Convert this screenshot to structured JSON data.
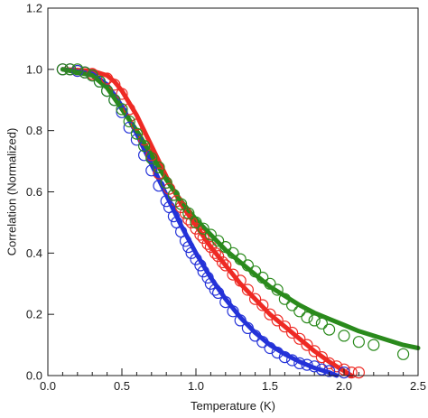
{
  "chart_data": {
    "type": "scatter",
    "title": "",
    "xlabel": "Temperature (K)",
    "ylabel": "Correlation (Normalized)",
    "xlim": [
      0.0,
      2.5
    ],
    "ylim": [
      0.0,
      1.2
    ],
    "x_ticks": [
      0.0,
      0.5,
      1.0,
      1.5,
      2.0,
      2.5
    ],
    "x_tick_labels": [
      "0.0",
      "0.5",
      "1.0",
      "1.5",
      "2.0",
      "2.5"
    ],
    "x_minor_step": 0.1,
    "y_ticks": [
      0.0,
      0.2,
      0.4,
      0.6,
      0.8,
      1.0,
      1.2
    ],
    "y_tick_labels": [
      "0.0",
      "0.2",
      "0.4",
      "0.6",
      "0.8",
      "1.0",
      "1.2"
    ],
    "grid": false,
    "legend": "none",
    "series": [
      {
        "color": "#ee2a24",
        "marker": "open-circle",
        "points": [
          [
            0.1,
            1.0
          ],
          [
            0.15,
            1.0
          ],
          [
            0.2,
            0.995
          ],
          [
            0.25,
            0.99
          ],
          [
            0.3,
            0.985
          ],
          [
            0.4,
            0.97
          ],
          [
            0.45,
            0.95
          ],
          [
            0.5,
            0.92
          ],
          [
            0.55,
            0.87
          ],
          [
            0.6,
            0.82
          ],
          [
            0.65,
            0.77
          ],
          [
            0.7,
            0.72
          ],
          [
            0.75,
            0.66
          ],
          [
            0.8,
            0.63
          ],
          [
            0.82,
            0.61
          ],
          [
            0.85,
            0.59
          ],
          [
            0.87,
            0.57
          ],
          [
            0.9,
            0.55
          ],
          [
            0.93,
            0.53
          ],
          [
            0.95,
            0.51
          ],
          [
            0.97,
            0.5
          ],
          [
            1.0,
            0.48
          ],
          [
            1.03,
            0.46
          ],
          [
            1.05,
            0.45
          ],
          [
            1.08,
            0.43
          ],
          [
            1.1,
            0.42
          ],
          [
            1.13,
            0.4
          ],
          [
            1.15,
            0.39
          ],
          [
            1.18,
            0.37
          ],
          [
            1.2,
            0.36
          ],
          [
            1.25,
            0.33
          ],
          [
            1.3,
            0.31
          ],
          [
            1.35,
            0.28
          ],
          [
            1.4,
            0.25
          ],
          [
            1.45,
            0.23
          ],
          [
            1.5,
            0.2
          ],
          [
            1.55,
            0.18
          ],
          [
            1.6,
            0.16
          ],
          [
            1.65,
            0.14
          ],
          [
            1.7,
            0.12
          ],
          [
            1.75,
            0.1
          ],
          [
            1.8,
            0.08
          ],
          [
            1.85,
            0.06
          ],
          [
            1.9,
            0.04
          ],
          [
            1.95,
            0.03
          ],
          [
            2.0,
            0.02
          ],
          [
            2.05,
            0.01
          ],
          [
            2.1,
            0.01
          ]
        ],
        "fit_line": [
          [
            0.1,
            1.0
          ],
          [
            0.3,
            0.995
          ],
          [
            0.4,
            0.98
          ],
          [
            0.45,
            0.96
          ],
          [
            0.5,
            0.93
          ],
          [
            0.6,
            0.85
          ],
          [
            0.7,
            0.75
          ],
          [
            0.8,
            0.65
          ],
          [
            0.9,
            0.56
          ],
          [
            1.0,
            0.49
          ],
          [
            1.1,
            0.42
          ],
          [
            1.2,
            0.36
          ],
          [
            1.3,
            0.3
          ],
          [
            1.4,
            0.25
          ],
          [
            1.5,
            0.2
          ],
          [
            1.6,
            0.16
          ],
          [
            1.7,
            0.12
          ],
          [
            1.8,
            0.08
          ],
          [
            1.9,
            0.045
          ],
          [
            2.0,
            0.015
          ],
          [
            2.05,
            0.0
          ]
        ]
      },
      {
        "color": "#2432d8",
        "marker": "open-circle",
        "points": [
          [
            0.1,
            1.0
          ],
          [
            0.15,
            1.0
          ],
          [
            0.2,
            0.995
          ],
          [
            0.25,
            0.99
          ],
          [
            0.3,
            0.98
          ],
          [
            0.35,
            0.96
          ],
          [
            0.4,
            0.93
          ],
          [
            0.45,
            0.9
          ],
          [
            0.5,
            0.86
          ],
          [
            0.55,
            0.81
          ],
          [
            0.6,
            0.77
          ],
          [
            0.65,
            0.72
          ],
          [
            0.7,
            0.67
          ],
          [
            0.75,
            0.62
          ],
          [
            0.8,
            0.57
          ],
          [
            0.82,
            0.55
          ],
          [
            0.85,
            0.52
          ],
          [
            0.87,
            0.5
          ],
          [
            0.9,
            0.47
          ],
          [
            0.93,
            0.44
          ],
          [
            0.95,
            0.42
          ],
          [
            0.97,
            0.4
          ],
          [
            1.0,
            0.38
          ],
          [
            1.03,
            0.36
          ],
          [
            1.05,
            0.34
          ],
          [
            1.08,
            0.32
          ],
          [
            1.1,
            0.3
          ],
          [
            1.13,
            0.28
          ],
          [
            1.15,
            0.27
          ],
          [
            1.2,
            0.24
          ],
          [
            1.25,
            0.21
          ],
          [
            1.3,
            0.18
          ],
          [
            1.35,
            0.155
          ],
          [
            1.4,
            0.13
          ],
          [
            1.45,
            0.11
          ],
          [
            1.5,
            0.09
          ],
          [
            1.55,
            0.075
          ],
          [
            1.6,
            0.06
          ],
          [
            1.65,
            0.05
          ],
          [
            1.7,
            0.04
          ],
          [
            1.75,
            0.035
          ],
          [
            1.8,
            0.03
          ],
          [
            1.85,
            0.02
          ],
          [
            1.9,
            0.015
          ],
          [
            2.0,
            0.01
          ]
        ],
        "fit_line": [
          [
            0.1,
            1.0
          ],
          [
            0.3,
            0.985
          ],
          [
            0.4,
            0.95
          ],
          [
            0.5,
            0.88
          ],
          [
            0.6,
            0.79
          ],
          [
            0.7,
            0.69
          ],
          [
            0.8,
            0.59
          ],
          [
            0.9,
            0.49
          ],
          [
            1.0,
            0.4
          ],
          [
            1.1,
            0.32
          ],
          [
            1.2,
            0.25
          ],
          [
            1.3,
            0.19
          ],
          [
            1.4,
            0.14
          ],
          [
            1.5,
            0.1
          ],
          [
            1.6,
            0.07
          ],
          [
            1.7,
            0.045
          ],
          [
            1.8,
            0.025
          ],
          [
            1.9,
            0.01
          ],
          [
            1.95,
            0.0
          ]
        ]
      },
      {
        "color": "#2a8a1c",
        "marker": "open-circle",
        "points": [
          [
            0.1,
            1.0
          ],
          [
            0.15,
            1.0
          ],
          [
            0.2,
            1.0
          ],
          [
            0.25,
            0.99
          ],
          [
            0.3,
            0.98
          ],
          [
            0.35,
            0.96
          ],
          [
            0.4,
            0.93
          ],
          [
            0.45,
            0.9
          ],
          [
            0.5,
            0.87
          ],
          [
            0.55,
            0.83
          ],
          [
            0.6,
            0.79
          ],
          [
            0.65,
            0.75
          ],
          [
            0.7,
            0.71
          ],
          [
            0.75,
            0.68
          ],
          [
            0.8,
            0.63
          ],
          [
            0.85,
            0.59
          ],
          [
            0.9,
            0.56
          ],
          [
            0.95,
            0.53
          ],
          [
            1.0,
            0.5
          ],
          [
            1.05,
            0.48
          ],
          [
            1.1,
            0.46
          ],
          [
            1.15,
            0.44
          ],
          [
            1.2,
            0.42
          ],
          [
            1.25,
            0.4
          ],
          [
            1.3,
            0.38
          ],
          [
            1.35,
            0.36
          ],
          [
            1.4,
            0.34
          ],
          [
            1.45,
            0.32
          ],
          [
            1.5,
            0.3
          ],
          [
            1.55,
            0.28
          ],
          [
            1.6,
            0.25
          ],
          [
            1.65,
            0.23
          ],
          [
            1.7,
            0.21
          ],
          [
            1.75,
            0.19
          ],
          [
            1.8,
            0.18
          ],
          [
            1.85,
            0.17
          ],
          [
            1.9,
            0.15
          ],
          [
            2.0,
            0.13
          ],
          [
            2.1,
            0.11
          ],
          [
            2.2,
            0.1
          ],
          [
            2.4,
            0.07
          ]
        ],
        "fit_line": [
          [
            0.1,
            1.0
          ],
          [
            0.3,
            0.98
          ],
          [
            0.4,
            0.94
          ],
          [
            0.5,
            0.87
          ],
          [
            0.6,
            0.8
          ],
          [
            0.7,
            0.72
          ],
          [
            0.8,
            0.64
          ],
          [
            0.9,
            0.57
          ],
          [
            1.0,
            0.51
          ],
          [
            1.1,
            0.46
          ],
          [
            1.2,
            0.41
          ],
          [
            1.3,
            0.37
          ],
          [
            1.4,
            0.33
          ],
          [
            1.5,
            0.29
          ],
          [
            1.6,
            0.26
          ],
          [
            1.7,
            0.23
          ],
          [
            1.8,
            0.205
          ],
          [
            1.9,
            0.185
          ],
          [
            2.0,
            0.165
          ],
          [
            2.1,
            0.145
          ],
          [
            2.2,
            0.13
          ],
          [
            2.3,
            0.115
          ],
          [
            2.4,
            0.1
          ],
          [
            2.5,
            0.09
          ]
        ]
      }
    ]
  }
}
